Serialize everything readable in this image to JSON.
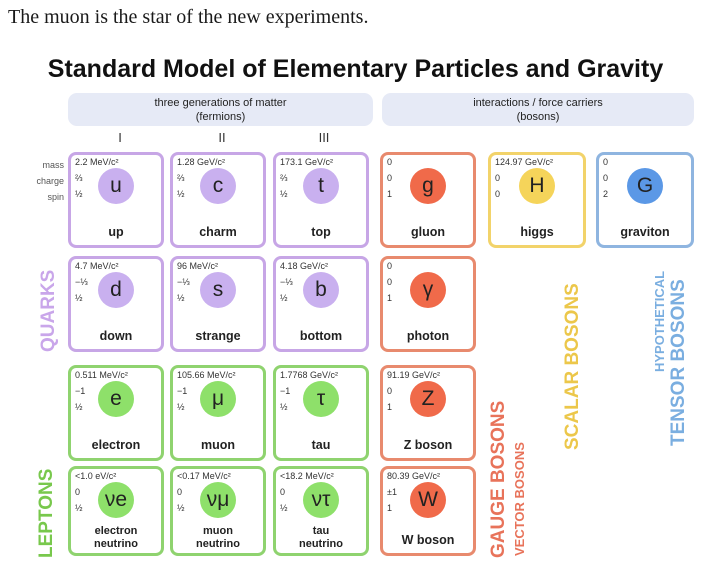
{
  "caption": "The muon is the star of the new experiments.",
  "title": "Standard Model of Elementary Particles and Gravity",
  "bands": {
    "fermions": [
      "three generations of matter",
      "(fermions)"
    ],
    "bosons": [
      "interactions / force carriers",
      "(bosons)"
    ]
  },
  "generations": [
    "I",
    "II",
    "III"
  ],
  "row_labels": [
    "mass",
    "charge",
    "spin"
  ],
  "particles": [
    {
      "id": "up",
      "mass": "2.2 MeV/c²",
      "charge": "⅔",
      "spin": "½",
      "symbol": "u",
      "name": "up"
    },
    {
      "id": "charm",
      "mass": "1.28 GeV/c²",
      "charge": "⅔",
      "spin": "½",
      "symbol": "c",
      "name": "charm"
    },
    {
      "id": "top",
      "mass": "173.1 GeV/c²",
      "charge": "⅔",
      "spin": "½",
      "symbol": "t",
      "name": "top"
    },
    {
      "id": "gluon",
      "mass": "0",
      "charge": "0",
      "spin": "1",
      "symbol": "g",
      "name": "gluon"
    },
    {
      "id": "higgs",
      "mass": "124.97 GeV/c²",
      "charge": "0",
      "spin": "0",
      "symbol": "H",
      "name": "higgs"
    },
    {
      "id": "graviton",
      "mass": "0",
      "charge": "0",
      "spin": "2",
      "symbol": "G",
      "name": "graviton"
    },
    {
      "id": "down",
      "mass": "4.7 MeV/c²",
      "charge": "−⅓",
      "spin": "½",
      "symbol": "d",
      "name": "down"
    },
    {
      "id": "strange",
      "mass": "96 MeV/c²",
      "charge": "−⅓",
      "spin": "½",
      "symbol": "s",
      "name": "strange"
    },
    {
      "id": "bottom",
      "mass": "4.18 GeV/c²",
      "charge": "−⅓",
      "spin": "½",
      "symbol": "b",
      "name": "bottom"
    },
    {
      "id": "photon",
      "mass": "0",
      "charge": "0",
      "spin": "1",
      "symbol": "γ",
      "name": "photon"
    },
    {
      "id": "electron",
      "mass": "0.511 MeV/c²",
      "charge": "−1",
      "spin": "½",
      "symbol": "e",
      "name": "electron"
    },
    {
      "id": "muon",
      "mass": "105.66 MeV/c²",
      "charge": "−1",
      "spin": "½",
      "symbol": "μ",
      "name": "muon"
    },
    {
      "id": "tau",
      "mass": "1.7768 GeV/c²",
      "charge": "−1",
      "spin": "½",
      "symbol": "τ",
      "name": "tau"
    },
    {
      "id": "zboson",
      "mass": "91.19 GeV/c²",
      "charge": "0",
      "spin": "1",
      "symbol": "Z",
      "name": "Z boson"
    },
    {
      "id": "nue",
      "mass": "<1.0 eV/c²",
      "charge": "0",
      "spin": "½",
      "symbol": "νe",
      "name": "electron neutrino"
    },
    {
      "id": "numu",
      "mass": "<0.17 MeV/c²",
      "charge": "0",
      "spin": "½",
      "symbol": "νμ",
      "name": "muon neutrino"
    },
    {
      "id": "nutau",
      "mass": "<18.2 MeV/c²",
      "charge": "0",
      "spin": "½",
      "symbol": "ντ",
      "name": "tau neutrino"
    },
    {
      "id": "wboson",
      "mass": "80.39 GeV/c²",
      "charge": "±1",
      "spin": "1",
      "symbol": "W",
      "name": "W boson"
    }
  ],
  "side_labels": {
    "quarks": "QUARKS",
    "leptons": "LEPTONS",
    "gauge": "GAUGE BOSONS",
    "vector": "VECTOR BOSONS",
    "scalar": "SCALAR BOSONS",
    "hypothetical": "HYPOTHETICAL",
    "tensor": "TENSOR BOSONS"
  },
  "colors": {
    "quark": "#c7a6e6",
    "lepton": "#8fd36f",
    "gauge": "#e88a6e",
    "scalar": "#f2d36a",
    "tensor": "#8fb5e0"
  }
}
